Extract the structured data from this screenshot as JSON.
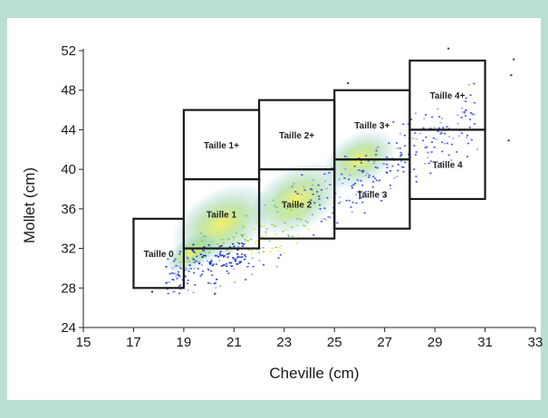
{
  "chart_data": {
    "type": "scatter",
    "title": "",
    "xlabel": "Cheville (cm)",
    "ylabel": "Mollet (cm)",
    "xlim": [
      15,
      33
    ],
    "ylim": [
      24,
      52
    ],
    "x_ticks": [
      15,
      17,
      19,
      21,
      23,
      25,
      27,
      29,
      31,
      33
    ],
    "y_ticks": [
      24,
      28,
      32,
      36,
      40,
      44,
      48,
      52
    ],
    "grid": false,
    "legend": "none",
    "density_description": "dense point cloud along diagonal from about (18, 30) to (31, 48), densest around Taille 1 and Taille 2",
    "size_boxes": [
      {
        "label": "Taille 0",
        "x": [
          17,
          19
        ],
        "y": [
          28,
          35
        ]
      },
      {
        "label": "Taille 1",
        "x": [
          19,
          22
        ],
        "y": [
          32,
          39
        ]
      },
      {
        "label": "Taille 1+",
        "x": [
          19,
          22
        ],
        "y": [
          39,
          46
        ]
      },
      {
        "label": "Taille 2",
        "x": [
          22,
          25
        ],
        "y": [
          33,
          40
        ]
      },
      {
        "label": "Taille 2+",
        "x": [
          22,
          25
        ],
        "y": [
          40,
          47
        ]
      },
      {
        "label": "Taille 3",
        "x": [
          25,
          28
        ],
        "y": [
          34,
          41
        ]
      },
      {
        "label": "Taille 3+",
        "x": [
          25,
          28
        ],
        "y": [
          41,
          48
        ]
      },
      {
        "label": "Taille 4",
        "x": [
          28,
          31
        ],
        "y": [
          37,
          44
        ]
      },
      {
        "label": "Taille 4+",
        "x": [
          28,
          31
        ],
        "y": [
          44,
          51
        ]
      }
    ],
    "colors": {
      "dense": "#e6e64a",
      "medium": "#6fc27a",
      "sparse": "#2b3fd6",
      "box": "#1a1a1a"
    }
  }
}
